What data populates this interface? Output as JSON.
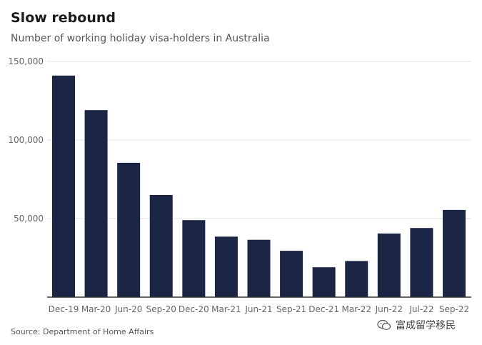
{
  "chart_data": {
    "type": "bar",
    "title": "Slow rebound",
    "subtitle": "Number of working holiday visa-holders in Australia",
    "categories": [
      "Dec-19",
      "Mar-20",
      "Jun-20",
      "Sep-20",
      "Dec-20",
      "Mar-21",
      "Jun-21",
      "Sep-21",
      "Dec-21",
      "Mar-22",
      "Jun-22",
      "Jul-22",
      "Sep-22"
    ],
    "values": [
      141000,
      119000,
      85500,
      65000,
      49000,
      38500,
      36500,
      29500,
      19000,
      23000,
      40500,
      44000,
      55500
    ],
    "ylim": [
      0,
      150000
    ],
    "yticks": [
      50000,
      100000,
      150000
    ],
    "ytick_labels": [
      "50,000",
      "100,000",
      "150,000"
    ],
    "grid": true,
    "bar_color": "#1b2544",
    "source": "Source: Department of Home Affairs"
  },
  "watermark": {
    "text": "富成留学移民",
    "icon": "wechat-icon"
  }
}
